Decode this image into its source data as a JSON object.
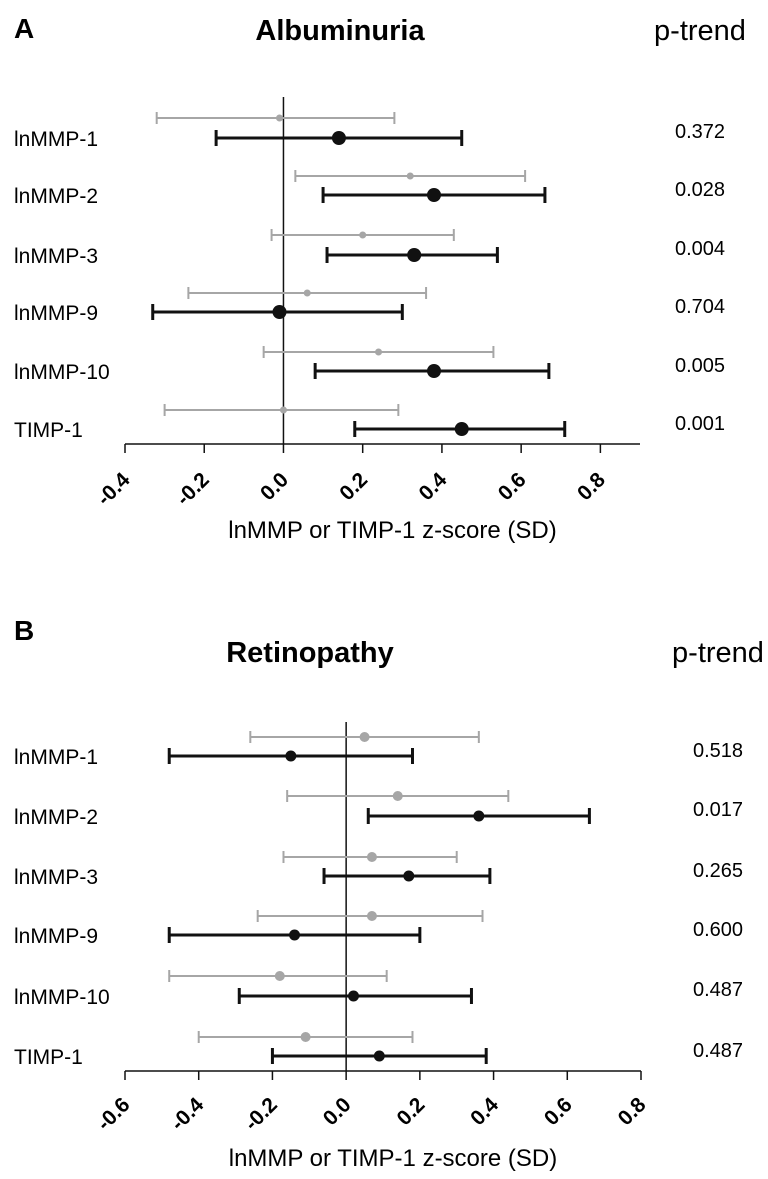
{
  "chart_data": [
    {
      "type": "forest",
      "panel_label": "A",
      "title": "Albuminuria",
      "pvalue_header": "p-trend",
      "xlabel": "lnMMP or TIMP-1 z-score (SD)",
      "xlim": [
        -0.4,
        0.9
      ],
      "xticks": [
        -0.4,
        -0.2,
        0.0,
        0.2,
        0.4,
        0.6,
        0.8
      ],
      "tick_labels": [
        "-0.4",
        "-0.2",
        "0.0",
        "0.2",
        "0.4",
        "0.6",
        "0.8"
      ],
      "reference_line": 0.0,
      "rows": [
        {
          "label": "lnMMP-1",
          "p_trend": "0.372",
          "estimates": [
            {
              "style": "gray",
              "est": -0.01,
              "lo": -0.32,
              "hi": 0.28
            },
            {
              "style": "black",
              "est": 0.14,
              "lo": -0.17,
              "hi": 0.45
            }
          ]
        },
        {
          "label": "lnMMP-2",
          "p_trend": "0.028",
          "estimates": [
            {
              "style": "gray",
              "est": 0.32,
              "lo": 0.03,
              "hi": 0.61
            },
            {
              "style": "black",
              "est": 0.38,
              "lo": 0.1,
              "hi": 0.66
            }
          ]
        },
        {
          "label": "lnMMP-3",
          "p_trend": "0.004",
          "estimates": [
            {
              "style": "gray",
              "est": 0.2,
              "lo": -0.03,
              "hi": 0.43
            },
            {
              "style": "black",
              "est": 0.33,
              "lo": 0.11,
              "hi": 0.54
            }
          ]
        },
        {
          "label": "lnMMP-9",
          "p_trend": "0.704",
          "estimates": [
            {
              "style": "gray",
              "est": 0.06,
              "lo": -0.24,
              "hi": 0.36
            },
            {
              "style": "black",
              "est": -0.01,
              "lo": -0.33,
              "hi": 0.3
            }
          ]
        },
        {
          "label": "lnMMP-10",
          "p_trend": "0.005",
          "estimates": [
            {
              "style": "gray",
              "est": 0.24,
              "lo": -0.05,
              "hi": 0.53
            },
            {
              "style": "black",
              "est": 0.38,
              "lo": 0.08,
              "hi": 0.67
            }
          ]
        },
        {
          "label": "TIMP-1",
          "p_trend": "0.001",
          "estimates": [
            {
              "style": "gray",
              "est": 0.0,
              "lo": -0.3,
              "hi": 0.29
            },
            {
              "style": "black",
              "est": 0.45,
              "lo": 0.18,
              "hi": 0.71
            }
          ]
        }
      ]
    },
    {
      "type": "forest",
      "panel_label": "B",
      "title": "Retinopathy",
      "pvalue_header": "p-trend",
      "xlabel": "lnMMP or TIMP-1 z-score (SD)",
      "xlim": [
        -0.6,
        0.8
      ],
      "xticks": [
        -0.6,
        -0.4,
        -0.2,
        0.0,
        0.2,
        0.4,
        0.6,
        0.8
      ],
      "tick_labels": [
        "-0.6",
        "-0.4",
        "-0.2",
        "0.0",
        "0.2",
        "0.4",
        "0.6",
        "0.8"
      ],
      "reference_line": 0.0,
      "rows": [
        {
          "label": "lnMMP-1",
          "p_trend": "0.518",
          "estimates": [
            {
              "style": "gray",
              "est": 0.05,
              "lo": -0.26,
              "hi": 0.36
            },
            {
              "style": "black",
              "est": -0.15,
              "lo": -0.48,
              "hi": 0.18
            }
          ]
        },
        {
          "label": "lnMMP-2",
          "p_trend": "0.017",
          "estimates": [
            {
              "style": "gray",
              "est": 0.14,
              "lo": -0.16,
              "hi": 0.44
            },
            {
              "style": "black",
              "est": 0.36,
              "lo": 0.06,
              "hi": 0.66
            }
          ]
        },
        {
          "label": "lnMMP-3",
          "p_trend": "0.265",
          "estimates": [
            {
              "style": "gray",
              "est": 0.07,
              "lo": -0.17,
              "hi": 0.3
            },
            {
              "style": "black",
              "est": 0.17,
              "lo": -0.06,
              "hi": 0.39
            }
          ]
        },
        {
          "label": "lnMMP-9",
          "p_trend": "0.600",
          "estimates": [
            {
              "style": "gray",
              "est": 0.07,
              "lo": -0.24,
              "hi": 0.37
            },
            {
              "style": "black",
              "est": -0.14,
              "lo": -0.48,
              "hi": 0.2
            }
          ]
        },
        {
          "label": "lnMMP-10",
          "p_trend": "0.487",
          "estimates": [
            {
              "style": "gray",
              "est": -0.18,
              "lo": -0.48,
              "hi": 0.11
            },
            {
              "style": "black",
              "est": 0.02,
              "lo": -0.29,
              "hi": 0.34
            }
          ]
        },
        {
          "label": "TIMP-1",
          "p_trend": "0.487",
          "estimates": [
            {
              "style": "gray",
              "est": -0.11,
              "lo": -0.4,
              "hi": 0.18
            },
            {
              "style": "black",
              "est": 0.09,
              "lo": -0.2,
              "hi": 0.38
            }
          ]
        }
      ]
    }
  ],
  "colors": {
    "gray": "#a6a6a6",
    "black": "#111111",
    "axis": "#111111"
  }
}
